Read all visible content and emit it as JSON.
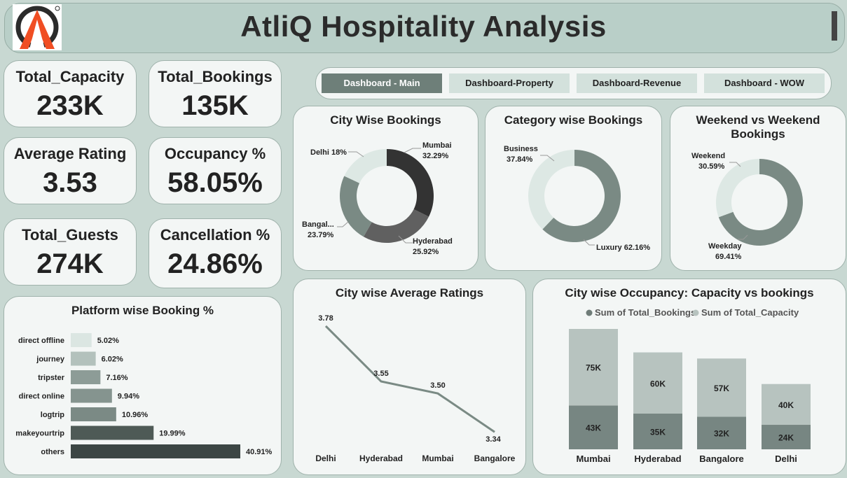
{
  "header": {
    "title": "AtliQ Hospitality Analysis"
  },
  "kpis": [
    {
      "label": "Total_Capacity",
      "value": "233K"
    },
    {
      "label": "Total_Bookings",
      "value": "135K"
    },
    {
      "label": "Average Rating",
      "value": "3.53"
    },
    {
      "label": "Occupancy %",
      "value": "58.05%"
    },
    {
      "label": "Total_Guests",
      "value": "274K"
    },
    {
      "label": "Cancellation %",
      "value": "24.86%"
    }
  ],
  "nav": {
    "tabs": [
      "Dashboard - Main",
      "Dashboard-Property",
      "Dashboard-Revenue",
      "Dashboard - WOW"
    ],
    "active": 0
  },
  "colors": {
    "dark": "#333333",
    "mid": "#6f7c78",
    "mid2": "#7a8a84",
    "light": "#c8dbd5",
    "lighter": "#dde8e4"
  },
  "chart_data": [
    {
      "type": "pie",
      "title": "City Wise Bookings",
      "categories": [
        "Mumbai",
        "Hyderabad",
        "Bangal...",
        "Delhi"
      ],
      "values": [
        32.29,
        25.92,
        23.79,
        18
      ],
      "labels": [
        "Mumbai",
        "32.29%",
        "Hyderabad",
        "25.92%",
        "Bangal...",
        "23.79%",
        "Delhi 18%"
      ]
    },
    {
      "type": "pie",
      "title": "Category wise Bookings",
      "categories": [
        "Luxury",
        "Business"
      ],
      "values": [
        62.16,
        37.84
      ],
      "labels": [
        "Business",
        "37.84%",
        "Luxury 62.16%"
      ]
    },
    {
      "type": "pie",
      "title": "Weekend vs Weekend Bookings",
      "title_lines": [
        "Weekend vs Weekend",
        "Bookings"
      ],
      "categories": [
        "Weekday",
        "Weekend"
      ],
      "values": [
        69.41,
        30.59
      ],
      "labels": [
        "Weekend",
        "30.59%",
        "Weekday",
        "69.41%"
      ]
    },
    {
      "type": "bar",
      "title": "Platform wise Booking %",
      "categories": [
        "direct offline",
        "journey",
        "tripster",
        "direct online",
        "logtrip",
        "makeyourtrip",
        "others"
      ],
      "values": [
        5.02,
        6.02,
        7.16,
        9.94,
        10.96,
        19.99,
        40.91
      ],
      "value_labels": [
        "5.02%",
        "6.02%",
        "7.16%",
        "9.94%",
        "10.96%",
        "19.99%",
        "40.91%"
      ]
    },
    {
      "type": "line",
      "title": "City wise Average Ratings",
      "categories": [
        "Delhi",
        "Hyderabad",
        "Mumbai",
        "Bangalore"
      ],
      "values": [
        3.78,
        3.55,
        3.5,
        3.34
      ],
      "value_labels": [
        "3.78",
        "3.55",
        "3.50",
        "3.34"
      ]
    },
    {
      "type": "bar",
      "title": "City wise Occupancy: Capacity vs bookings",
      "categories": [
        "Mumbai",
        "Hyderabad",
        "Bangalore",
        "Delhi"
      ],
      "series": [
        {
          "name": "Sum of Total_Bookings",
          "values": [
            43,
            35,
            32,
            24
          ],
          "labels": [
            "43K",
            "35K",
            "32K",
            "24K"
          ]
        },
        {
          "name": "Sum of Total_Capacity",
          "values": [
            75,
            60,
            57,
            40
          ],
          "labels": [
            "75K",
            "60K",
            "57K",
            "40K"
          ]
        }
      ],
      "stacked": true,
      "legend": "top"
    }
  ]
}
